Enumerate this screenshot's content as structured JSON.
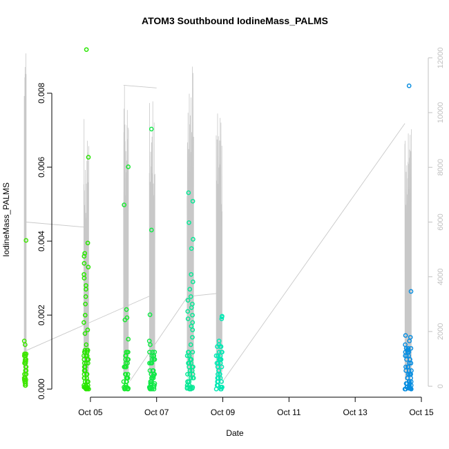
{
  "chart_data": {
    "type": "scatter",
    "title": "ATOM3 Southbound IodineMass_PALMS",
    "xlabel": "Date",
    "ylabel": "IodineMass_PALMS",
    "xlim": [
      "2016-10-03T20:00",
      "2016-10-15T05:00"
    ],
    "ylim": [
      -0.00022,
      0.0094
    ],
    "y2lim": [
      -400,
      12600
    ],
    "x_ticks": [
      {
        "value": "2016-10-05",
        "label": "Oct 05"
      },
      {
        "value": "2016-10-07",
        "label": "Oct 07"
      },
      {
        "value": "2016-10-09",
        "label": "Oct 09"
      },
      {
        "value": "2016-10-11",
        "label": "Oct 11"
      },
      {
        "value": "2016-10-13",
        "label": "Oct 13"
      },
      {
        "value": "2016-10-15",
        "label": "Oct 15"
      }
    ],
    "y_ticks": [
      {
        "value": 0.0,
        "label": "0.000"
      },
      {
        "value": 0.002,
        "label": "0.002"
      },
      {
        "value": 0.004,
        "label": "0.004"
      },
      {
        "value": 0.006,
        "label": "0.006"
      },
      {
        "value": 0.008,
        "label": "0.008"
      }
    ],
    "y2_ticks": [
      {
        "value": 0,
        "label": "0"
      },
      {
        "value": 2000,
        "label": "2000"
      },
      {
        "value": 4000,
        "label": "4000"
      },
      {
        "value": 6000,
        "label": "6000"
      },
      {
        "value": 8000,
        "label": "8000"
      },
      {
        "value": 10000,
        "label": "10000"
      },
      {
        "value": 12000,
        "label": "12000"
      }
    ],
    "grid": false,
    "colors": {
      "points_start": "#22e600",
      "points_end": "#0a84e0",
      "altitude_line": "#c8c8c8",
      "axis": "#000000",
      "secondary_axis": "#c0c0c0"
    },
    "flights": [
      {
        "date": "2016-10-03",
        "t": [
          0.0,
          0.06
        ],
        "color": "#3ee600",
        "alt_peaks": [
          12300,
          6000,
          1300
        ],
        "outliers": [
          0.00402
        ],
        "cluster_values": [
          0.0001,
          0.00015,
          0.0002,
          0.00025,
          0.0003,
          0.0004,
          0.0005,
          0.0006,
          0.0007,
          0.00075,
          0.0008,
          0.0009,
          0.00095,
          0.0012,
          0.0013
        ]
      },
      {
        "date": "2016-10-04",
        "t": [
          0.8,
          0.95
        ],
        "color": "#28e600",
        "alt_peaks": [
          10200,
          10400,
          10400,
          5800,
          1500
        ],
        "outliers": [
          0.00918,
          0.00627,
          0.00395,
          0.00367,
          0.00359
        ],
        "cluster_values": [
          0.0,
          2e-05,
          5e-05,
          0.0001,
          0.0002,
          0.0003,
          0.0004,
          0.0005,
          0.0006,
          0.0007,
          0.0008,
          0.0009,
          0.001,
          0.00105,
          0.0012,
          0.0015,
          0.0016,
          0.0018,
          0.002,
          0.0023,
          0.0025,
          0.0027,
          0.0028,
          0.003,
          0.0031,
          0.0033,
          0.0034
        ]
      },
      {
        "date": "2016-10-06",
        "t": [
          0.0,
          0.15
        ],
        "color": "#18e830",
        "alt_peaks": [
          11000,
          12500,
          10800,
          1500
        ],
        "outliers": [
          0.00601,
          0.00498,
          0.00215,
          0.00193,
          0.00187
        ],
        "cluster_values": [
          0.0,
          2e-05,
          5e-05,
          0.0001,
          0.0002,
          0.0003,
          0.0004,
          0.0006,
          0.0007,
          0.0008,
          0.0009,
          0.001,
          0.00135
        ]
      },
      {
        "date": "2016-10-06",
        "t": [
          0.78,
          0.95
        ],
        "color": "#12e848",
        "alt_peaks": [
          9800,
          10900,
          10700,
          2700,
          1000
        ],
        "outliers": [
          0.00703,
          0.0043,
          0.00201
        ],
        "cluster_values": [
          0.0,
          2e-05,
          5e-05,
          0.0001,
          0.00015,
          0.0002,
          0.0003,
          0.00035,
          0.0004,
          0.0005,
          0.0007,
          0.0008,
          0.0009,
          0.001,
          0.0012,
          0.0013
        ]
      },
      {
        "date": "2016-10-07",
        "t": [
          0.92,
          1.12
        ],
        "color": "#08e896",
        "alt_peaks": [
          10900,
          10500,
          12000,
          3000
        ],
        "outliers": [
          0.00531,
          0.00508,
          0.0045,
          0.00405,
          0.0038
        ],
        "cluster_values": [
          0.0,
          2e-05,
          5e-05,
          0.0001,
          0.0002,
          0.0003,
          0.0004,
          0.0005,
          0.0006,
          0.0007,
          0.0008,
          0.0009,
          0.001,
          0.0012,
          0.0014,
          0.0016,
          0.0017,
          0.0018,
          0.0019,
          0.002,
          0.0021,
          0.0022,
          0.0023,
          0.0024,
          0.0025,
          0.0027,
          0.0029,
          0.0031
        ]
      },
      {
        "date": "2016-10-08",
        "t": [
          0.8,
          0.98
        ],
        "color": "#04e8b4",
        "alt_peaks": [
          9400,
          10000,
          3000
        ],
        "outliers": [
          0.00197,
          0.00195,
          0.0019
        ],
        "cluster_values": [
          0.0,
          5e-05,
          0.0001,
          0.0002,
          0.0003,
          0.0004,
          0.0005,
          0.0006,
          0.0007,
          0.0008,
          0.0009,
          0.001,
          0.00115,
          0.0012,
          0.0013
        ]
      },
      {
        "date": "2016-10-14",
        "t": [
          0.5,
          0.7
        ],
        "color": "#0a8ee0",
        "alt_peaks": [
          9500,
          10000,
          9900
        ],
        "outliers": [
          0.0082,
          0.00264
        ],
        "cluster_values": [
          0.0,
          2e-05,
          5e-05,
          0.0001,
          0.00015,
          0.0002,
          0.0003,
          0.0004,
          0.0005,
          0.0006,
          0.0007,
          0.0008,
          0.0009,
          0.001,
          0.00105,
          0.0011,
          0.0012,
          0.0013,
          0.0014,
          0.00145
        ]
      }
    ],
    "ferry_legs": [
      [
        [
          "2016-10-03",
          0.06,
          6000
        ],
        [
          "2016-10-04",
          0.95,
          5800
        ]
      ],
      [
        [
          "2016-10-03",
          0.05,
          1300
        ],
        [
          "2016-10-06",
          0.8,
          3300
        ]
      ],
      [
        [
          "2016-10-06",
          0.0,
          11000
        ],
        [
          "2016-10-07",
          0.0,
          10900
        ]
      ],
      [
        [
          "2016-10-06",
          0.2,
          200
        ],
        [
          "2016-10-07",
          0.95,
          3300
        ]
      ],
      [
        [
          "2016-10-07",
          1.1,
          3300
        ],
        [
          "2016-10-08",
          0.9,
          3400
        ]
      ],
      [
        [
          "2016-10-08",
          0.95,
          100
        ],
        [
          "2016-10-14",
          0.5,
          9600
        ]
      ]
    ]
  }
}
